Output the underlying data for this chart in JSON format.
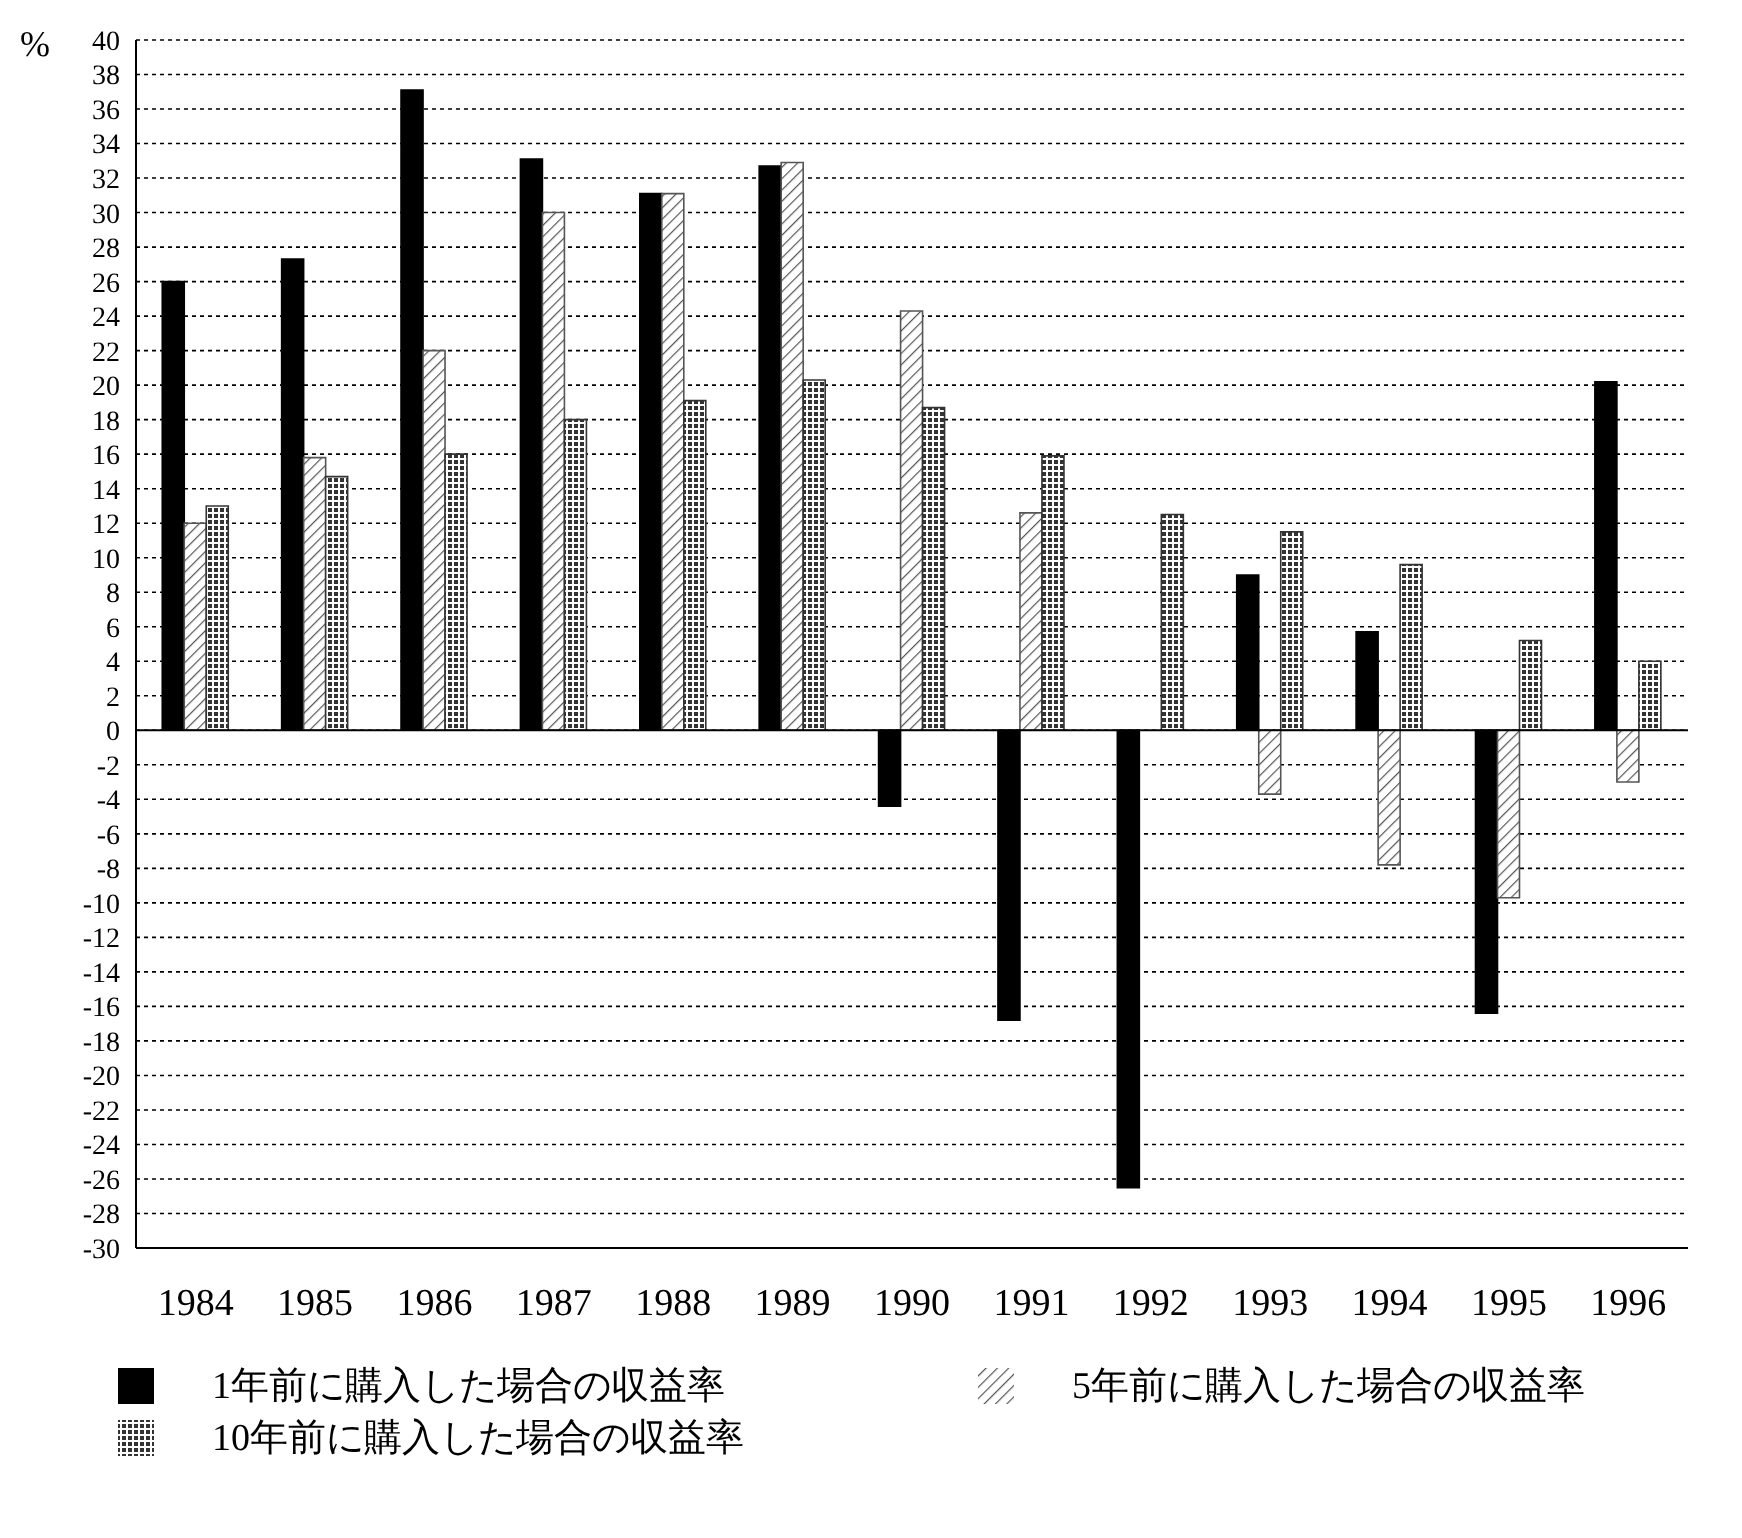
{
  "chart_data": {
    "type": "bar",
    "ylabel": "%",
    "categories": [
      "1984",
      "1985",
      "1986",
      "1987",
      "1988",
      "1989",
      "1990",
      "1991",
      "1992",
      "1993",
      "1994",
      "1995",
      "1996"
    ],
    "series": [
      {
        "name": "1年前に購入した場合の収益率",
        "color": "#000000",
        "values": [
          26,
          27.3,
          37.1,
          33.1,
          31.1,
          32.7,
          -4.4,
          -16.8,
          -26.5,
          9,
          5.7,
          -16.4,
          20.2
        ]
      },
      {
        "name": "5年前に購入した場合の収益率",
        "color": "#555555",
        "values": [
          12,
          15.8,
          22,
          30,
          31.1,
          32.9,
          24.3,
          12.6,
          null,
          -3.7,
          -7.8,
          -9.7,
          -3
        ]
      },
      {
        "name": "10年前に購入した場合の収益率",
        "color": "#333333",
        "values": [
          13,
          14.7,
          16,
          18,
          19.1,
          20.3,
          18.7,
          15.9,
          12.5,
          11.5,
          9.6,
          5.2,
          4
        ]
      }
    ],
    "ylim": [
      -30,
      40
    ],
    "yticks": [
      -30,
      -28,
      -26,
      -24,
      -22,
      -20,
      -18,
      -16,
      -14,
      -12,
      -10,
      -8,
      -6,
      -4,
      -2,
      0,
      2,
      4,
      6,
      8,
      10,
      12,
      14,
      16,
      18,
      20,
      22,
      24,
      26,
      28,
      30,
      32,
      34,
      36,
      38,
      40
    ],
    "grid": "y",
    "legend": "bottom"
  }
}
